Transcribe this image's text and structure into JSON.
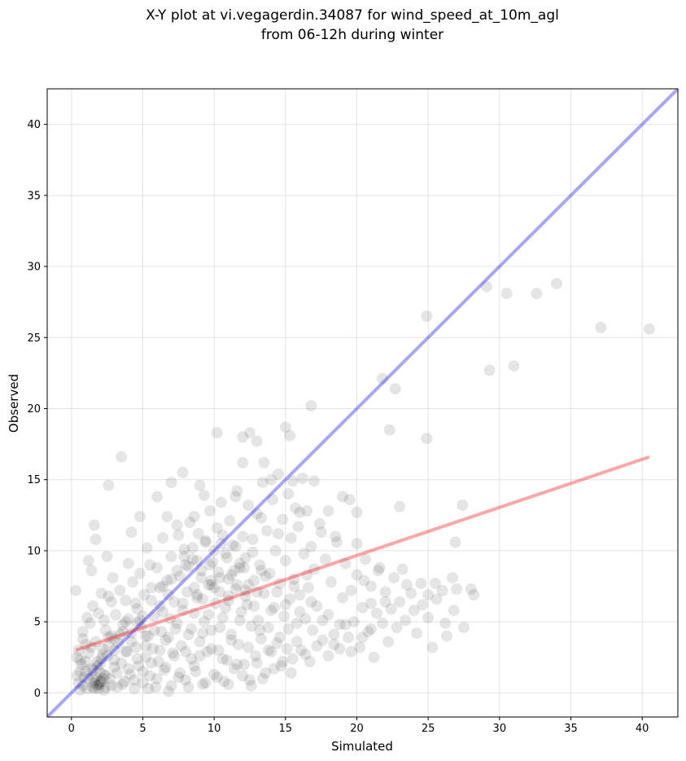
{
  "chart_data": {
    "type": "scatter",
    "title_lines": [
      "X-Y plot at vi.vegagerdin.34087 for wind_speed_at_10m_agl",
      "from 06-12h during winter"
    ],
    "xlabel": "Simulated",
    "ylabel": "Observed",
    "xlim": [
      -1.7,
      42.5
    ],
    "ylim": [
      -1.7,
      42.5
    ],
    "xticks": [
      0,
      5,
      10,
      15,
      20,
      25,
      30,
      35,
      40
    ],
    "yticks": [
      0,
      5,
      10,
      15,
      20,
      25,
      30,
      35,
      40
    ],
    "grid": true,
    "point_color": "#000000",
    "point_alpha": 0.1,
    "identity_line": {
      "color": "#0000ff",
      "alpha": 0.35,
      "x": [
        -1.7,
        42.5
      ],
      "y": [
        -1.7,
        42.5
      ]
    },
    "regression_line": {
      "color": "#ff0000",
      "alpha": 0.35,
      "x": [
        0.3,
        40.5
      ],
      "y": [
        3.0,
        16.6
      ]
    },
    "points": [
      [
        0.3,
        7.2
      ],
      [
        0.5,
        0.7
      ],
      [
        0.6,
        2.3
      ],
      [
        0.8,
        3.8
      ],
      [
        1.0,
        1.5
      ],
      [
        1.1,
        5.3
      ],
      [
        1.2,
        9.3
      ],
      [
        1.4,
        8.6
      ],
      [
        1.5,
        0.4
      ],
      [
        1.6,
        11.8
      ],
      [
        1.7,
        10.8
      ],
      [
        1.8,
        0.5
      ],
      [
        1.9,
        0.6
      ],
      [
        2.0,
        0.6
      ],
      [
        2.1,
        2.4
      ],
      [
        2.3,
        5.1
      ],
      [
        2.5,
        9.6
      ],
      [
        2.6,
        14.6
      ],
      [
        2.8,
        6.4
      ],
      [
        3.0,
        3.0
      ],
      [
        3.5,
        16.6
      ],
      [
        3.8,
        5.0
      ],
      [
        4.2,
        11.3
      ],
      [
        4.5,
        6.3
      ],
      [
        4.8,
        12.4
      ],
      [
        5.2,
        4.0
      ],
      [
        5.5,
        9.0
      ],
      [
        6.0,
        13.8
      ],
      [
        6.4,
        7.5
      ],
      [
        6.7,
        12.4
      ],
      [
        7.0,
        14.8
      ],
      [
        7.5,
        11.1
      ],
      [
        7.8,
        15.5
      ],
      [
        8.0,
        9.0
      ],
      [
        8.6,
        12.4
      ],
      [
        9.0,
        14.6
      ],
      [
        9.3,
        13.9
      ],
      [
        9.8,
        7.6
      ],
      [
        10.2,
        18.3
      ],
      [
        10.5,
        10.5
      ],
      [
        11.0,
        8.0
      ],
      [
        11.5,
        13.8
      ],
      [
        12.0,
        16.2
      ],
      [
        12.0,
        18.0
      ],
      [
        12.5,
        18.3
      ],
      [
        13.0,
        17.7
      ],
      [
        13.3,
        12.3
      ],
      [
        13.5,
        16.2
      ],
      [
        14.0,
        15.0
      ],
      [
        14.5,
        11.2
      ],
      [
        15.0,
        18.7
      ],
      [
        15.3,
        18.1
      ],
      [
        15.5,
        14.9
      ],
      [
        16.0,
        12.7
      ],
      [
        16.5,
        8.3
      ],
      [
        16.8,
        20.2
      ],
      [
        17.0,
        14.9
      ],
      [
        17.5,
        11.3
      ],
      [
        18.0,
        12.8
      ],
      [
        18.5,
        11.0
      ],
      [
        19.0,
        13.8
      ],
      [
        19.5,
        13.6
      ],
      [
        20.0,
        12.7
      ],
      [
        20.0,
        10.5
      ],
      [
        20.5,
        7.9
      ],
      [
        21.0,
        6.3
      ],
      [
        21.5,
        8.6
      ],
      [
        21.8,
        22.1
      ],
      [
        22.0,
        6.4
      ],
      [
        22.3,
        18.5
      ],
      [
        22.7,
        21.4
      ],
      [
        23.0,
        13.1
      ],
      [
        23.2,
        8.7
      ],
      [
        23.5,
        7.6
      ],
      [
        24.0,
        5.8
      ],
      [
        24.5,
        7.7
      ],
      [
        24.9,
        26.5
      ],
      [
        24.9,
        17.9
      ],
      [
        25.0,
        6.9
      ],
      [
        25.3,
        3.2
      ],
      [
        25.5,
        7.7
      ],
      [
        26.0,
        7.2
      ],
      [
        26.3,
        4.0
      ],
      [
        26.7,
        8.1
      ],
      [
        26.9,
        10.6
      ],
      [
        27.0,
        7.3
      ],
      [
        27.4,
        13.2
      ],
      [
        27.5,
        4.6
      ],
      [
        28.0,
        7.3
      ],
      [
        28.2,
        6.9
      ],
      [
        29.1,
        28.6
      ],
      [
        29.3,
        22.7
      ],
      [
        30.5,
        28.1
      ],
      [
        31.0,
        23.0
      ],
      [
        32.6,
        28.1
      ],
      [
        34.0,
        28.8
      ],
      [
        37.1,
        25.7
      ],
      [
        40.5,
        25.6
      ],
      [
        0.4,
        1.2
      ],
      [
        0.5,
        3.0
      ],
      [
        0.6,
        0.2
      ],
      [
        0.7,
        2.0
      ],
      [
        0.8,
        4.3
      ],
      [
        0.9,
        1.1
      ],
      [
        1.0,
        3.4
      ],
      [
        1.1,
        0.3
      ],
      [
        1.2,
        2.8
      ],
      [
        1.3,
        4.9
      ],
      [
        1.4,
        1.7
      ],
      [
        1.5,
        6.1
      ],
      [
        1.6,
        0.9
      ],
      [
        1.7,
        3.6
      ],
      [
        1.8,
        2.2
      ],
      [
        1.9,
        5.6
      ],
      [
        2.0,
        1.4
      ],
      [
        2.1,
        7.0
      ],
      [
        2.2,
        3.1
      ],
      [
        2.3,
        0.2
      ],
      [
        2.4,
        4.4
      ],
      [
        2.5,
        2.6
      ],
      [
        2.6,
        6.8
      ],
      [
        2.7,
        1.0
      ],
      [
        2.8,
        4.0
      ],
      [
        2.9,
        8.1
      ],
      [
        3.0,
        1.8
      ],
      [
        3.1,
        5.5
      ],
      [
        3.2,
        0.4
      ],
      [
        3.3,
        3.5
      ],
      [
        3.4,
        7.2
      ],
      [
        3.5,
        2.1
      ],
      [
        3.6,
        4.8
      ],
      [
        3.7,
        0.8
      ],
      [
        3.8,
        6.5
      ],
      [
        3.9,
        2.9
      ],
      [
        4.0,
        9.1
      ],
      [
        4.1,
        1.3
      ],
      [
        4.2,
        4.2
      ],
      [
        4.3,
        7.8
      ],
      [
        4.4,
        0.3
      ],
      [
        4.5,
        3.2
      ],
      [
        4.6,
        5.9
      ],
      [
        4.7,
        1.9
      ],
      [
        4.8,
        8.4
      ],
      [
        4.9,
        4.6
      ],
      [
        5.0,
        0.7
      ],
      [
        5.1,
        6.9
      ],
      [
        5.2,
        2.5
      ],
      [
        5.3,
        10.2
      ],
      [
        5.4,
        4.0
      ],
      [
        5.5,
        1.2
      ],
      [
        5.6,
        7.4
      ],
      [
        5.7,
        3.1
      ],
      [
        5.8,
        5.4
      ],
      [
        5.9,
        0.4
      ],
      [
        6.0,
        8.8
      ],
      [
        6.1,
        2.2
      ],
      [
        6.2,
        6.1
      ],
      [
        6.3,
        4.3
      ],
      [
        6.4,
        10.9
      ],
      [
        6.5,
        1.6
      ],
      [
        6.6,
        3.7
      ],
      [
        6.7,
        7.9
      ],
      [
        6.8,
        0.1
      ],
      [
        6.9,
        5.2
      ],
      [
        7.0,
        9.6
      ],
      [
        7.1,
        2.8
      ],
      [
        7.2,
        6.4
      ],
      [
        7.3,
        4.5
      ],
      [
        7.4,
        11.8
      ],
      [
        7.5,
        1.1
      ],
      [
        7.6,
        8.2
      ],
      [
        7.7,
        3.3
      ],
      [
        7.8,
        5.8
      ],
      [
        7.9,
        10.1
      ],
      [
        8.0,
        0.9
      ],
      [
        8.1,
        7.1
      ],
      [
        8.2,
        4.1
      ],
      [
        8.3,
        12.0
      ],
      [
        8.4,
        2.4
      ],
      [
        8.5,
        9.4
      ],
      [
        8.6,
        5.6
      ],
      [
        8.7,
        1.5
      ],
      [
        8.8,
        6.9
      ],
      [
        8.9,
        11.2
      ],
      [
        9.0,
        3.6
      ],
      [
        9.1,
        8.6
      ],
      [
        9.2,
        0.6
      ],
      [
        9.3,
        5.0
      ],
      [
        9.4,
        10.6
      ],
      [
        9.5,
        2.9
      ],
      [
        9.6,
        7.6
      ],
      [
        9.7,
        12.8
      ],
      [
        9.8,
        4.4
      ],
      [
        9.9,
        9.2
      ],
      [
        10.0,
        1.3
      ],
      [
        10.1,
        6.3
      ],
      [
        10.2,
        11.6
      ],
      [
        10.3,
        3.0
      ],
      [
        10.4,
        8.1
      ],
      [
        10.5,
        13.4
      ],
      [
        10.6,
        5.3
      ],
      [
        10.7,
        0.8
      ],
      [
        10.8,
        9.8
      ],
      [
        10.9,
        2.3
      ],
      [
        11.0,
        6.8
      ],
      [
        11.1,
        12.1
      ],
      [
        11.2,
        4.1
      ],
      [
        11.3,
        10.4
      ],
      [
        11.4,
        1.7
      ],
      [
        11.5,
        7.3
      ],
      [
        11.6,
        14.2
      ],
      [
        11.7,
        3.4
      ],
      [
        11.8,
        8.8
      ],
      [
        11.9,
        5.7
      ],
      [
        12.0,
        11.0
      ],
      [
        12.1,
        2.0
      ],
      [
        12.2,
        9.5
      ],
      [
        12.3,
        6.2
      ],
      [
        12.4,
        13.2
      ],
      [
        12.5,
        0.9
      ],
      [
        12.6,
        4.7
      ],
      [
        12.7,
        10.8
      ],
      [
        12.8,
        7.9
      ],
      [
        12.9,
        2.6
      ],
      [
        13.0,
        12.6
      ],
      [
        13.1,
        5.1
      ],
      [
        13.2,
        9.0
      ],
      [
        13.3,
        3.8
      ],
      [
        13.4,
        14.8
      ],
      [
        13.5,
        7.0
      ],
      [
        13.6,
        1.4
      ],
      [
        13.7,
        11.4
      ],
      [
        13.8,
        4.6
      ],
      [
        13.9,
        8.4
      ],
      [
        14.0,
        2.9
      ],
      [
        14.1,
        13.6
      ],
      [
        14.2,
        6.0
      ],
      [
        14.3,
        10.0
      ],
      [
        14.4,
        3.5
      ],
      [
        14.5,
        15.4
      ],
      [
        14.6,
        7.7
      ],
      [
        14.7,
        1.9
      ],
      [
        14.8,
        12.2
      ],
      [
        14.9,
        5.4
      ],
      [
        15.0,
        9.3
      ],
      [
        15.1,
        3.1
      ],
      [
        15.2,
        14.0
      ],
      [
        15.3,
        6.6
      ],
      [
        15.4,
        10.9
      ],
      [
        15.5,
        2.4
      ],
      [
        15.6,
        8.0
      ],
      [
        15.7,
        13.0
      ],
      [
        15.8,
        4.9
      ],
      [
        15.9,
        11.7
      ],
      [
        16.0,
        6.9
      ],
      [
        16.1,
        3.0
      ],
      [
        16.2,
        15.1
      ],
      [
        16.3,
        9.8
      ],
      [
        16.4,
        5.2
      ],
      [
        16.5,
        12.8
      ],
      [
        16.6,
        7.4
      ],
      [
        16.7,
        2.2
      ],
      [
        16.8,
        10.3
      ],
      [
        16.9,
        4.4
      ],
      [
        17.0,
        8.7
      ],
      [
        17.2,
        6.1
      ],
      [
        17.4,
        11.9
      ],
      [
        17.6,
        3.7
      ],
      [
        17.8,
        9.4
      ],
      [
        18.0,
        5.5
      ],
      [
        18.2,
        7.8
      ],
      [
        18.4,
        3.4
      ],
      [
        18.6,
        10.6
      ],
      [
        18.8,
        4.8
      ],
      [
        19.0,
        6.7
      ],
      [
        19.2,
        9.1
      ],
      [
        19.4,
        3.9
      ],
      [
        19.6,
        7.2
      ],
      [
        19.8,
        5.0
      ],
      [
        20.0,
        8.3
      ],
      [
        20.2,
        3.2
      ],
      [
        20.4,
        6.0
      ],
      [
        20.6,
        9.4
      ],
      [
        20.8,
        4.3
      ],
      [
        21.0,
        7.5
      ],
      [
        21.2,
        2.5
      ],
      [
        21.4,
        5.6
      ],
      [
        21.6,
        8.8
      ],
      [
        21.8,
        4.9
      ],
      [
        22.0,
        7.1
      ],
      [
        22.2,
        3.6
      ],
      [
        22.4,
        5.9
      ],
      [
        22.6,
        8.1
      ],
      [
        22.8,
        4.6
      ],
      [
        23.0,
        6.4
      ],
      [
        23.4,
        5.1
      ],
      [
        23.8,
        7.0
      ],
      [
        24.2,
        4.2
      ],
      [
        24.6,
        6.2
      ],
      [
        25.0,
        5.3
      ],
      [
        25.6,
        6.6
      ],
      [
        26.2,
        4.9
      ],
      [
        26.8,
        5.8
      ],
      [
        0.4,
        2.5
      ],
      [
        0.6,
        1.5
      ],
      [
        0.8,
        0.5
      ],
      [
        1.0,
        2.2
      ],
      [
        1.2,
        1.0
      ],
      [
        1.4,
        3.2
      ],
      [
        1.6,
        0.3
      ],
      [
        1.8,
        1.9
      ],
      [
        2.0,
        0.8
      ],
      [
        2.2,
        2.7
      ],
      [
        2.4,
        1.2
      ],
      [
        2.6,
        3.9
      ],
      [
        2.8,
        0.5
      ],
      [
        3.0,
        2.3
      ],
      [
        3.2,
        1.4
      ],
      [
        3.4,
        4.1
      ],
      [
        3.6,
        0.6
      ],
      [
        3.8,
        2.9
      ],
      [
        4.0,
        1.7
      ],
      [
        4.2,
        3.6
      ],
      [
        4.4,
        0.9
      ],
      [
        4.6,
        2.4
      ],
      [
        4.8,
        5.1
      ],
      [
        5.0,
        1.5
      ],
      [
        5.2,
        3.3
      ],
      [
        5.4,
        0.3
      ],
      [
        5.6,
        2.1
      ],
      [
        5.8,
        4.4
      ],
      [
        6.0,
        1.0
      ],
      [
        6.2,
        3.0
      ],
      [
        6.4,
        5.7
      ],
      [
        6.6,
        1.8
      ],
      [
        6.8,
        3.9
      ],
      [
        7.0,
        0.5
      ],
      [
        7.2,
        2.6
      ],
      [
        7.4,
        4.9
      ],
      [
        7.6,
        1.4
      ],
      [
        7.8,
        6.3
      ],
      [
        8.0,
        2.9
      ],
      [
        8.2,
        0.4
      ],
      [
        8.4,
        4.5
      ],
      [
        8.6,
        1.9
      ],
      [
        8.8,
        6.7
      ],
      [
        9.0,
        2.6
      ],
      [
        9.2,
        4.2
      ],
      [
        9.4,
        0.7
      ],
      [
        9.6,
        5.5
      ],
      [
        9.8,
        3.1
      ],
      [
        10.0,
        7.4
      ],
      [
        10.2,
        1.1
      ],
      [
        10.4,
        4.6
      ],
      [
        10.6,
        2.4
      ],
      [
        10.8,
        6.0
      ],
      [
        11.0,
        0.6
      ],
      [
        11.2,
        3.7
      ],
      [
        11.4,
        8.6
      ],
      [
        11.6,
        2.0
      ],
      [
        11.8,
        5.1
      ],
      [
        12.0,
        1.2
      ],
      [
        12.2,
        7.2
      ],
      [
        12.4,
        3.2
      ],
      [
        12.6,
        0.5
      ],
      [
        12.8,
        6.1
      ],
      [
        13.0,
        2.1
      ],
      [
        13.2,
        4.4
      ],
      [
        13.4,
        1.0
      ],
      [
        13.6,
        8.2
      ],
      [
        13.8,
        3.0
      ],
      [
        14.0,
        5.8
      ],
      [
        14.2,
        1.7
      ],
      [
        14.4,
        7.1
      ],
      [
        14.6,
        3.9
      ],
      [
        14.8,
        2.2
      ],
      [
        15.0,
        6.2
      ],
      [
        15.2,
        4.5
      ],
      [
        15.4,
        1.4
      ],
      [
        15.6,
        7.5
      ],
      [
        15.8,
        3.6
      ],
      [
        16.0,
        5.7
      ],
      [
        16.4,
        2.7
      ],
      [
        16.8,
        6.4
      ],
      [
        17.2,
        3.3
      ],
      [
        17.6,
        5.1
      ],
      [
        18.0,
        2.6
      ],
      [
        18.4,
        4.1
      ],
      [
        18.8,
        3.1
      ],
      [
        19.2,
        4.8
      ],
      [
        19.6,
        2.9
      ],
      [
        20.4,
        3.9
      ],
      [
        21.0,
        4.5
      ],
      [
        7.9,
        9.6
      ],
      [
        8.2,
        8.9
      ],
      [
        8.5,
        10.2
      ],
      [
        8.8,
        9.3
      ],
      [
        9.1,
        8.1
      ],
      [
        9.4,
        10.7
      ],
      [
        9.7,
        9.0
      ],
      [
        10.0,
        10.0
      ],
      [
        10.3,
        8.5
      ],
      [
        10.6,
        11.1
      ],
      [
        10.9,
        9.5
      ],
      [
        11.2,
        8.3
      ],
      [
        11.5,
        10.3
      ],
      [
        11.8,
        9.1
      ],
      [
        12.1,
        8.8
      ],
      [
        12.4,
        7.6
      ],
      [
        12.7,
        9.9
      ],
      [
        13.0,
        7.1
      ],
      [
        13.3,
        8.6
      ],
      [
        8.6,
        7.4
      ],
      [
        9.2,
        6.6
      ],
      [
        9.8,
        7.9
      ],
      [
        10.4,
        7.1
      ],
      [
        11.0,
        6.5
      ],
      [
        11.6,
        7.6
      ],
      [
        12.2,
        6.8
      ],
      [
        7.0,
        8.0
      ],
      [
        7.4,
        8.6
      ],
      [
        6.8,
        6.9
      ],
      [
        6.2,
        7.4
      ],
      [
        5.6,
        6.5
      ],
      [
        5.0,
        5.4
      ],
      [
        4.6,
        4.9
      ],
      [
        4.0,
        5.2
      ],
      [
        3.6,
        4.3
      ],
      [
        3.0,
        3.8
      ],
      [
        2.6,
        3.3
      ],
      [
        2.2,
        1.0
      ],
      [
        1.6,
        0.7
      ],
      [
        2.4,
        0.4
      ],
      [
        1.9,
        0.3
      ],
      [
        2.1,
        0.8
      ],
      [
        1.7,
        1.1
      ],
      [
        2.3,
        1.3
      ],
      [
        1.5,
        1.6
      ],
      [
        2.0,
        2.0
      ]
    ]
  }
}
